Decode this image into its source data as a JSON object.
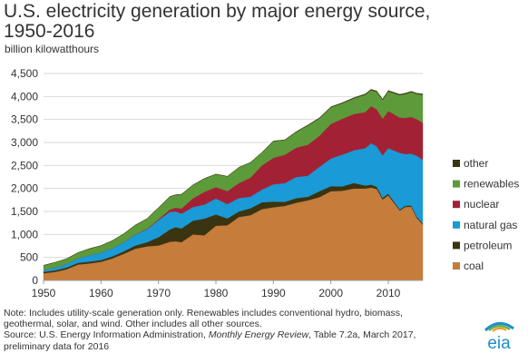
{
  "header": {
    "title": "U.S. electricity generation by major energy source, 1950-2016",
    "subtitle": "billion kilowatthours"
  },
  "notes": {
    "line1": "Note: Includes utility-scale generation only. Renewables includes conventional hydro, biomass, geothermal, solar, and wind. Other includes all other sources.",
    "source_prefix": "Source: U.S. Energy Information Administration, ",
    "source_italic": "Monthly Energy Review",
    "source_suffix": ", Table 7.2a, March 2017, preliminary data for 2016"
  },
  "logo": {
    "text": "eia",
    "colors": [
      "#1a8fd0",
      "#6cb33f",
      "#f7941d"
    ]
  },
  "chart_data": {
    "type": "area",
    "stacked": true,
    "x": [
      1950,
      1952,
      1954,
      1956,
      1958,
      1960,
      1962,
      1964,
      1966,
      1968,
      1970,
      1972,
      1973,
      1974,
      1976,
      1978,
      1980,
      1982,
      1984,
      1986,
      1988,
      1990,
      1992,
      1994,
      1996,
      1998,
      2000,
      2002,
      2004,
      2006,
      2007,
      2008,
      2009,
      2010,
      2012,
      2013,
      2014,
      2015,
      2016
    ],
    "xticks": [
      1950,
      1960,
      1970,
      1980,
      1990,
      2000,
      2010
    ],
    "xlim": [
      1950,
      2016
    ],
    "ylim": [
      0,
      4500
    ],
    "yticks": [
      0,
      500,
      1000,
      1500,
      2000,
      2500,
      3000,
      3500,
      4000,
      4500
    ],
    "ytick_labels": [
      "0",
      "500",
      "1,000",
      "1,500",
      "2,000",
      "2,500",
      "3,000",
      "3,500",
      "4,000",
      "4,500"
    ],
    "grid": true,
    "legend_position": "right",
    "series": [
      {
        "name": "coal",
        "color": "#c67c3a",
        "values": [
          155,
          185,
          240,
          345,
          370,
          405,
          480,
          580,
          690,
          740,
          760,
          840,
          850,
          830,
          1000,
          980,
          1190,
          1200,
          1380,
          1420,
          1550,
          1590,
          1620,
          1690,
          1740,
          1810,
          1940,
          1950,
          2000,
          2000,
          2020,
          1990,
          1760,
          1850,
          1520,
          1600,
          1600,
          1350,
          1220
        ]
      },
      {
        "name": "petroleum",
        "color": "#3b3410",
        "values": [
          33,
          35,
          40,
          38,
          40,
          40,
          45,
          55,
          70,
          90,
          180,
          270,
          310,
          300,
          300,
          365,
          245,
          150,
          120,
          150,
          150,
          125,
          90,
          100,
          80,
          130,
          110,
          95,
          120,
          65,
          65,
          46,
          39,
          37,
          23,
          27,
          30,
          28,
          24
        ]
      },
      {
        "name": "natural gas",
        "color": "#1a9ad6",
        "values": [
          40,
          60,
          80,
          100,
          140,
          160,
          180,
          200,
          240,
          280,
          370,
          380,
          340,
          320,
          295,
          305,
          345,
          310,
          290,
          250,
          275,
          375,
          405,
          460,
          455,
          530,
          600,
          690,
          710,
          810,
          900,
          880,
          920,
          990,
          1230,
          1120,
          1130,
          1330,
          1380
        ]
      },
      {
        "name": "nuclear",
        "color": "#a32135",
        "values": [
          0,
          0,
          0,
          0,
          0,
          1,
          2,
          3,
          6,
          13,
          22,
          54,
          83,
          114,
          191,
          276,
          251,
          283,
          328,
          414,
          527,
          577,
          619,
          640,
          675,
          674,
          754,
          780,
          789,
          787,
          806,
          806,
          799,
          807,
          769,
          789,
          797,
          797,
          805
        ]
      },
      {
        "name": "renewables",
        "color": "#5c9a3a",
        "values": [
          100,
          110,
          110,
          120,
          140,
          150,
          160,
          180,
          200,
          220,
          250,
          280,
          280,
          310,
          290,
          290,
          280,
          320,
          340,
          330,
          280,
          360,
          320,
          340,
          420,
          380,
          360,
          340,
          340,
          380,
          350,
          380,
          410,
          430,
          490,
          520,
          540,
          550,
          610
        ]
      },
      {
        "name": "other",
        "color": "#3b3410",
        "values": [
          0,
          0,
          0,
          0,
          0,
          0,
          0,
          0,
          0,
          0,
          0,
          0,
          0,
          0,
          0,
          0,
          0,
          0,
          0,
          0,
          0,
          4,
          6,
          8,
          10,
          10,
          11,
          12,
          14,
          16,
          16,
          17,
          16,
          17,
          17,
          17,
          17,
          17,
          17
        ]
      }
    ],
    "legend_order": [
      "other",
      "renewables",
      "nuclear",
      "natural gas",
      "petroleum",
      "coal"
    ]
  }
}
